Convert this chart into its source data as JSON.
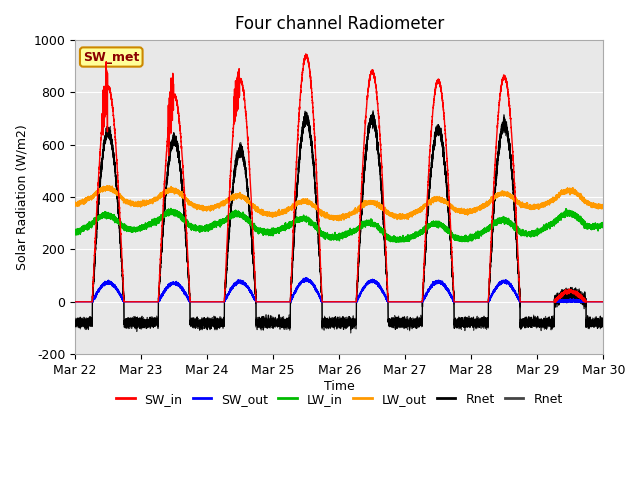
{
  "title": "Four channel Radiometer",
  "xlabel": "Time",
  "ylabel": "Solar Radiation (W/m2)",
  "ylim": [
    -200,
    1000
  ],
  "x_tick_labels": [
    "Mar 22",
    "Mar 23",
    "Mar 24",
    "Mar 25",
    "Mar 26",
    "Mar 27",
    "Mar 28",
    "Mar 29",
    "Mar 30"
  ],
  "x_tick_positions": [
    0,
    1,
    2,
    3,
    4,
    5,
    6,
    7,
    8
  ],
  "colors": {
    "SW_in": "#ff0000",
    "SW_out": "#0000ff",
    "LW_in": "#00bb00",
    "LW_out": "#ff9900",
    "Rnet_black": "#000000",
    "Rnet2": "#444444"
  },
  "annotation": "SW_met",
  "yticks": [
    -200,
    0,
    200,
    400,
    600,
    800,
    1000
  ],
  "legend_labels": [
    "SW_in",
    "SW_out",
    "LW_in",
    "LW_out",
    "Rnet",
    "Rnet"
  ]
}
